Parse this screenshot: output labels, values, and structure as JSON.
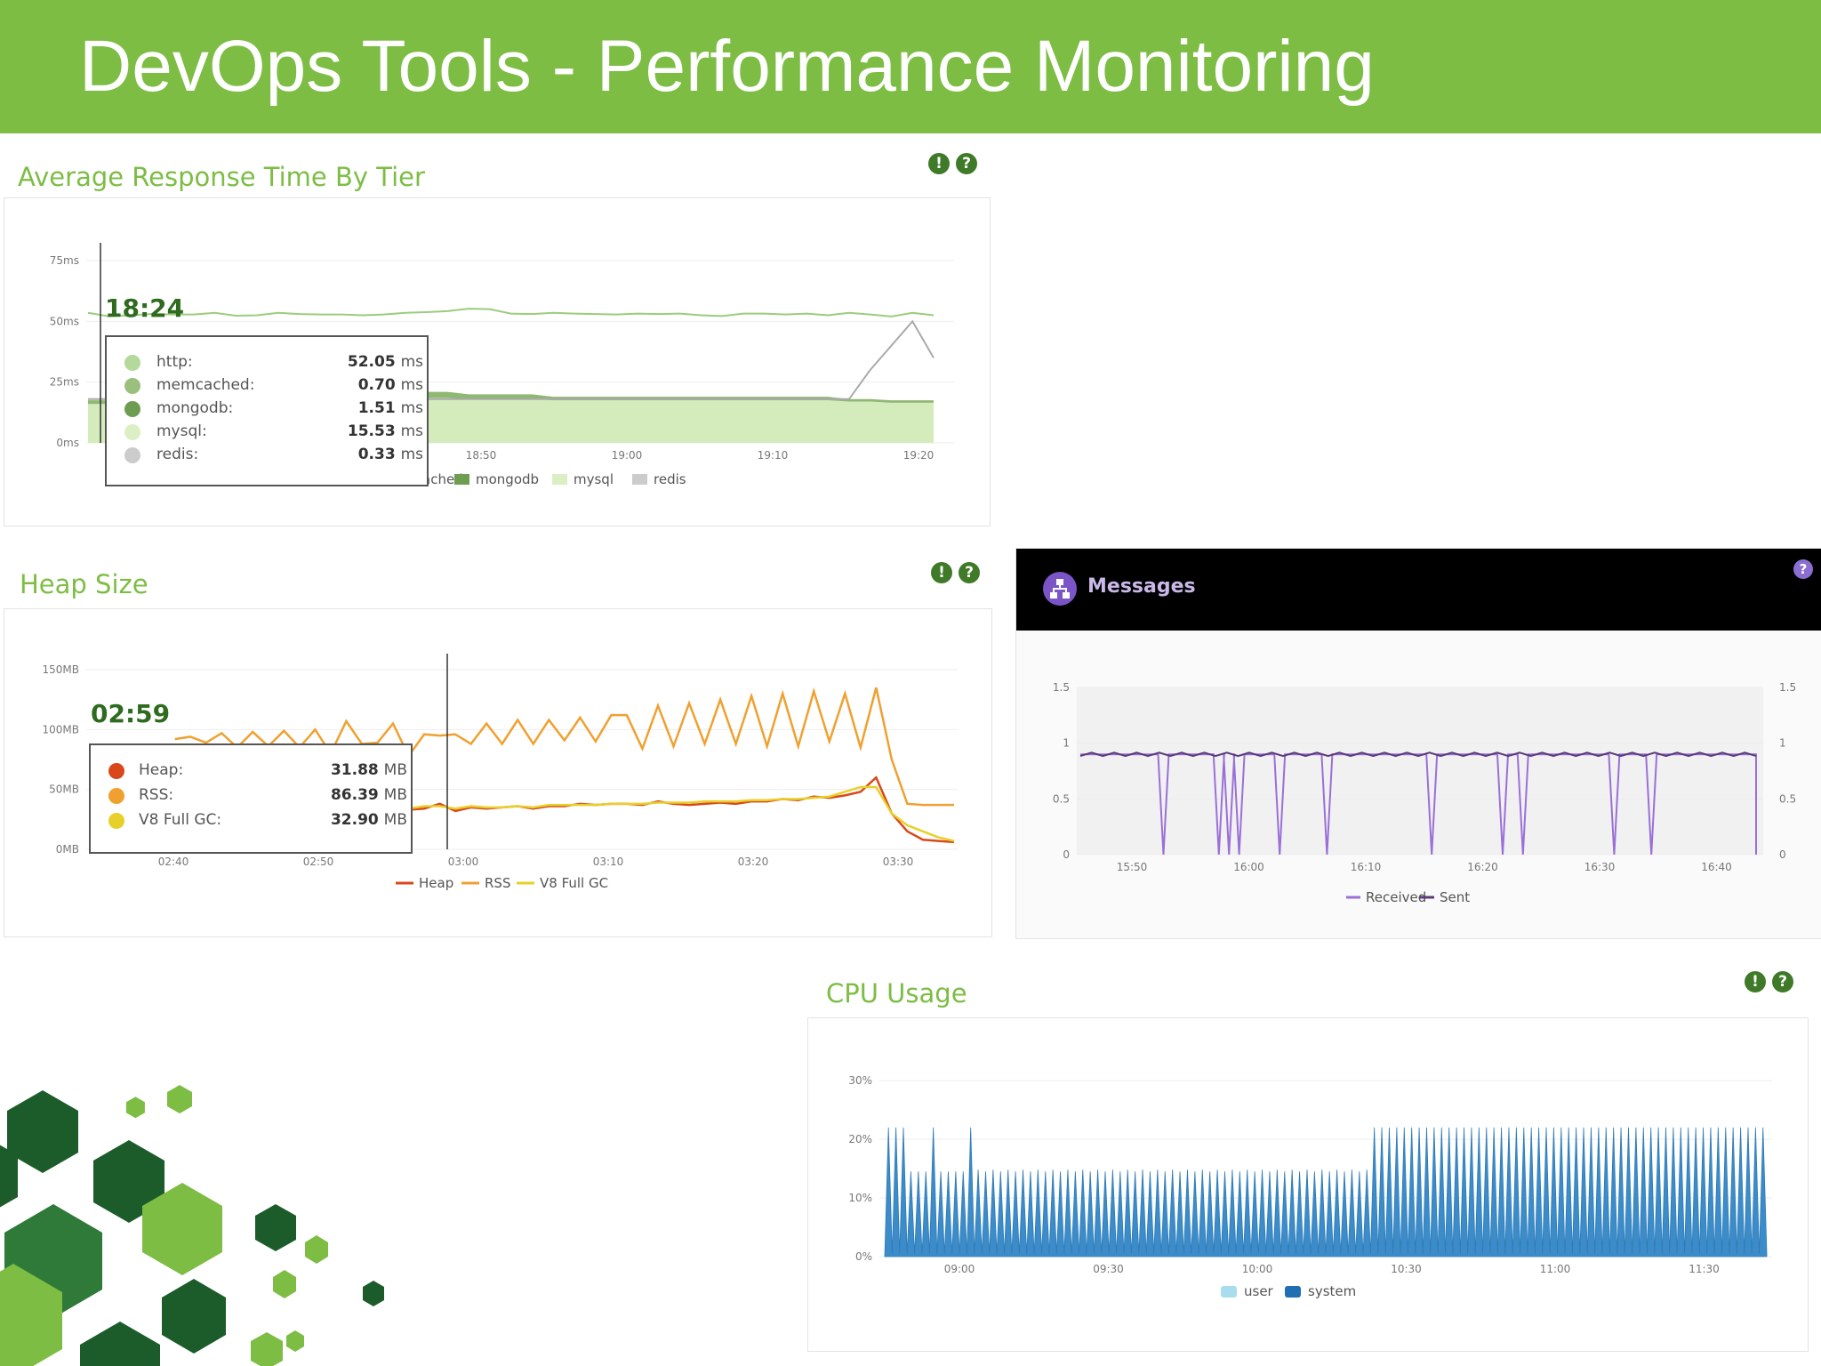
{
  "header": {
    "title": "DevOps Tools - Performance Monitoring",
    "bg": "#7dbd44"
  },
  "response_panel": {
    "title": "Average Response Time By Tier",
    "buttons": [
      "!",
      "?"
    ],
    "tooltip": {
      "time": "18:24",
      "rows": [
        {
          "name": "http:",
          "value": "52.05",
          "unit": "ms",
          "color": "#b4d99a"
        },
        {
          "name": "memcached:",
          "value": "0.70",
          "unit": "ms",
          "color": "#9bc07e"
        },
        {
          "name": "mongodb:",
          "value": "1.51",
          "unit": "ms",
          "color": "#6e9d52"
        },
        {
          "name": "mysql:",
          "value": "15.53",
          "unit": "ms",
          "color": "#dcefc4"
        },
        {
          "name": "redis:",
          "value": "0.33",
          "unit": "ms",
          "color": "#cccccc"
        }
      ]
    }
  },
  "heap_panel": {
    "title": "Heap Size",
    "buttons": [
      "!",
      "?"
    ],
    "tooltip": {
      "time": "02:59",
      "rows": [
        {
          "name": "Heap:",
          "value": "31.88",
          "unit": "MB",
          "color": "#d9481b"
        },
        {
          "name": "RSS:",
          "value": "86.39",
          "unit": "MB",
          "color": "#f0a030"
        },
        {
          "name": "V8 Full GC:",
          "value": "32.90",
          "unit": "MB",
          "color": "#e8d02a"
        }
      ]
    }
  },
  "messages_panel": {
    "title": "Messages",
    "buttons": [
      "?"
    ]
  },
  "cpu_panel": {
    "title": "CPU Usage",
    "buttons": [
      "!",
      "?"
    ]
  },
  "chart_data": [
    {
      "id": "response",
      "type": "area",
      "ylabels": [
        "75ms",
        "50ms",
        "25ms",
        "0ms"
      ],
      "ylim": [
        0,
        75
      ],
      "xlabels": [
        "18:50",
        "19:00",
        "19:10",
        "19:20"
      ],
      "x_range": [
        "18:20",
        "19:22"
      ],
      "legend_visible": [
        "ached",
        "mongodb",
        "mysql",
        "redis"
      ],
      "legend_colors": [
        "#6e9d52",
        "#dcefc4",
        "#cccccc"
      ],
      "series": [
        {
          "name": "http",
          "color": "#9ccc7c",
          "kind": "line",
          "values": [
            53.5,
            52.05,
            52.5,
            53,
            52.8,
            52.8,
            53.5,
            52.3,
            52.5,
            53.5,
            53,
            52.8,
            52.8,
            52.5,
            52.8,
            53.5,
            53.8,
            54.2,
            55.2,
            55,
            53.2,
            53,
            53.5,
            53.2,
            53,
            52.8,
            53.2,
            53,
            53.2,
            52.5,
            52.2,
            53.2,
            53.2,
            52.8,
            53.2,
            52.5,
            53.5,
            52.8,
            52,
            53.5,
            52.5
          ]
        },
        {
          "name": "mysql",
          "color": "#d4ecbc",
          "kind": "area",
          "values": [
            16,
            16,
            16.5,
            17,
            17.5,
            18,
            18.5,
            19,
            19.5,
            20,
            20.5,
            20.5,
            20.5,
            20,
            19.5,
            19,
            18.5,
            18.5,
            18,
            18,
            18,
            18,
            17.5,
            17.5,
            17.5,
            17.5,
            17.5,
            17.5,
            17.5,
            17.5,
            17.5,
            17.5,
            17.5,
            17.5,
            17.5,
            17.5,
            17,
            17,
            16.5,
            16.5,
            16.5
          ]
        },
        {
          "name": "mongodb",
          "color": "#8fb873",
          "kind": "band",
          "values": [
            1.5,
            1.5,
            2,
            2,
            2.5,
            3,
            3.5,
            4,
            4,
            4.5,
            5,
            5,
            4.5,
            4,
            3.5,
            3,
            2.5,
            2.5,
            2,
            2,
            2,
            2,
            1.5,
            1.5,
            1.5,
            1.5,
            1.5,
            1.5,
            1.5,
            1.5,
            1.5,
            1.5,
            1.5,
            1.5,
            1.5,
            1.5,
            1,
            1,
            1,
            1,
            1
          ]
        },
        {
          "name": "redis",
          "color": "#aaaaaa",
          "kind": "line",
          "values": [
            18,
            18,
            18,
            18,
            18,
            18,
            18,
            18,
            18,
            18,
            18,
            18,
            18,
            18,
            18,
            18,
            18,
            18,
            18,
            18,
            18,
            18,
            18,
            18,
            18,
            18,
            18,
            18,
            18,
            18,
            18,
            18,
            18,
            18,
            18,
            18,
            18,
            30,
            40,
            50,
            35
          ]
        }
      ]
    },
    {
      "id": "heap",
      "type": "line",
      "ylabels": [
        "150MB",
        "100MB",
        "50MB",
        "0MB"
      ],
      "ylim": [
        0,
        150
      ],
      "xlabels": [
        "02:40",
        "02:50",
        "03:00",
        "03:10",
        "03:20",
        "03:30"
      ],
      "legend": [
        "Heap",
        "RSS",
        "V8 Full GC"
      ],
      "series": [
        {
          "name": "RSS",
          "color": "#f0a030",
          "values": [
            null,
            null,
            null,
            null,
            null,
            92,
            94,
            89,
            97,
            85,
            98,
            86,
            99,
            85,
            100,
            80,
            107,
            88,
            89,
            105,
            78,
            96,
            95,
            96,
            88,
            105,
            88,
            108,
            88,
            108,
            91,
            110,
            90,
            112,
            112,
            84,
            120,
            86,
            122,
            88,
            125,
            88,
            128,
            86,
            130,
            86,
            132,
            90,
            130,
            85,
            135,
            75,
            38,
            37,
            37,
            37
          ]
        },
        {
          "name": "Heap",
          "color": "#d9481b",
          "values": [
            null,
            null,
            null,
            null,
            null,
            null,
            null,
            null,
            null,
            null,
            null,
            null,
            null,
            null,
            null,
            null,
            null,
            34,
            35,
            33,
            33,
            34,
            38,
            32,
            35,
            34,
            35,
            36,
            34,
            36,
            36,
            38,
            37,
            38,
            38,
            37,
            40,
            38,
            37,
            38,
            39,
            38,
            40,
            40,
            42,
            41,
            44,
            43,
            45,
            48,
            60,
            30,
            15,
            8,
            7,
            6
          ]
        },
        {
          "name": "V8 Full GC",
          "color": "#e8d02a",
          "values": [
            null,
            null,
            null,
            null,
            null,
            null,
            null,
            null,
            null,
            null,
            null,
            null,
            null,
            null,
            null,
            null,
            null,
            34,
            35,
            34,
            34,
            36,
            36,
            34,
            36,
            35,
            35,
            36,
            35,
            37,
            37,
            37,
            37,
            38,
            38,
            38,
            39,
            39,
            39,
            40,
            40,
            40,
            41,
            41,
            42,
            42,
            43,
            44,
            48,
            52,
            52,
            30,
            20,
            15,
            10,
            7
          ]
        }
      ]
    },
    {
      "id": "messages",
      "type": "line",
      "ylabels": [
        "1.5",
        "1",
        "0.5",
        "0"
      ],
      "ylabels_right": [
        "1.5",
        "1",
        "0.5",
        "0"
      ],
      "ylim": [
        0,
        1.5
      ],
      "xlabels": [
        "15:50",
        "16:00",
        "16:10",
        "16:20",
        "16:30",
        "16:40"
      ],
      "legend": [
        "Received",
        "Sent"
      ],
      "legend_colors": [
        "#9b6fd8",
        "#5b3a7a"
      ],
      "series": [
        {
          "name": "Received",
          "color": "#9b6fd8",
          "baseline": 0.9,
          "drops": [
            0.123,
            0.205,
            0.22,
            0.235,
            0.295,
            0.365,
            0.52,
            0.625,
            0.655,
            0.79,
            0.845
          ]
        },
        {
          "name": "Sent",
          "color": "#5b3a7a",
          "baseline": 0.9
        }
      ]
    },
    {
      "id": "cpu",
      "type": "area",
      "ylabels": [
        "30%",
        "20%",
        "10%",
        "0%"
      ],
      "ylim": [
        0,
        30
      ],
      "xlabels": [
        "09:00",
        "09:30",
        "10:00",
        "10:30",
        "11:00",
        "11:30"
      ],
      "legend": [
        "user",
        "system"
      ],
      "legend_colors": [
        "#a8dcee",
        "#1f6fb2"
      ],
      "series": [
        {
          "name": "system",
          "color": "#3b8cc8",
          "peak_low": 14.5,
          "peak_high": 22
        },
        {
          "name": "user",
          "color": "#a8dcee"
        }
      ]
    }
  ]
}
